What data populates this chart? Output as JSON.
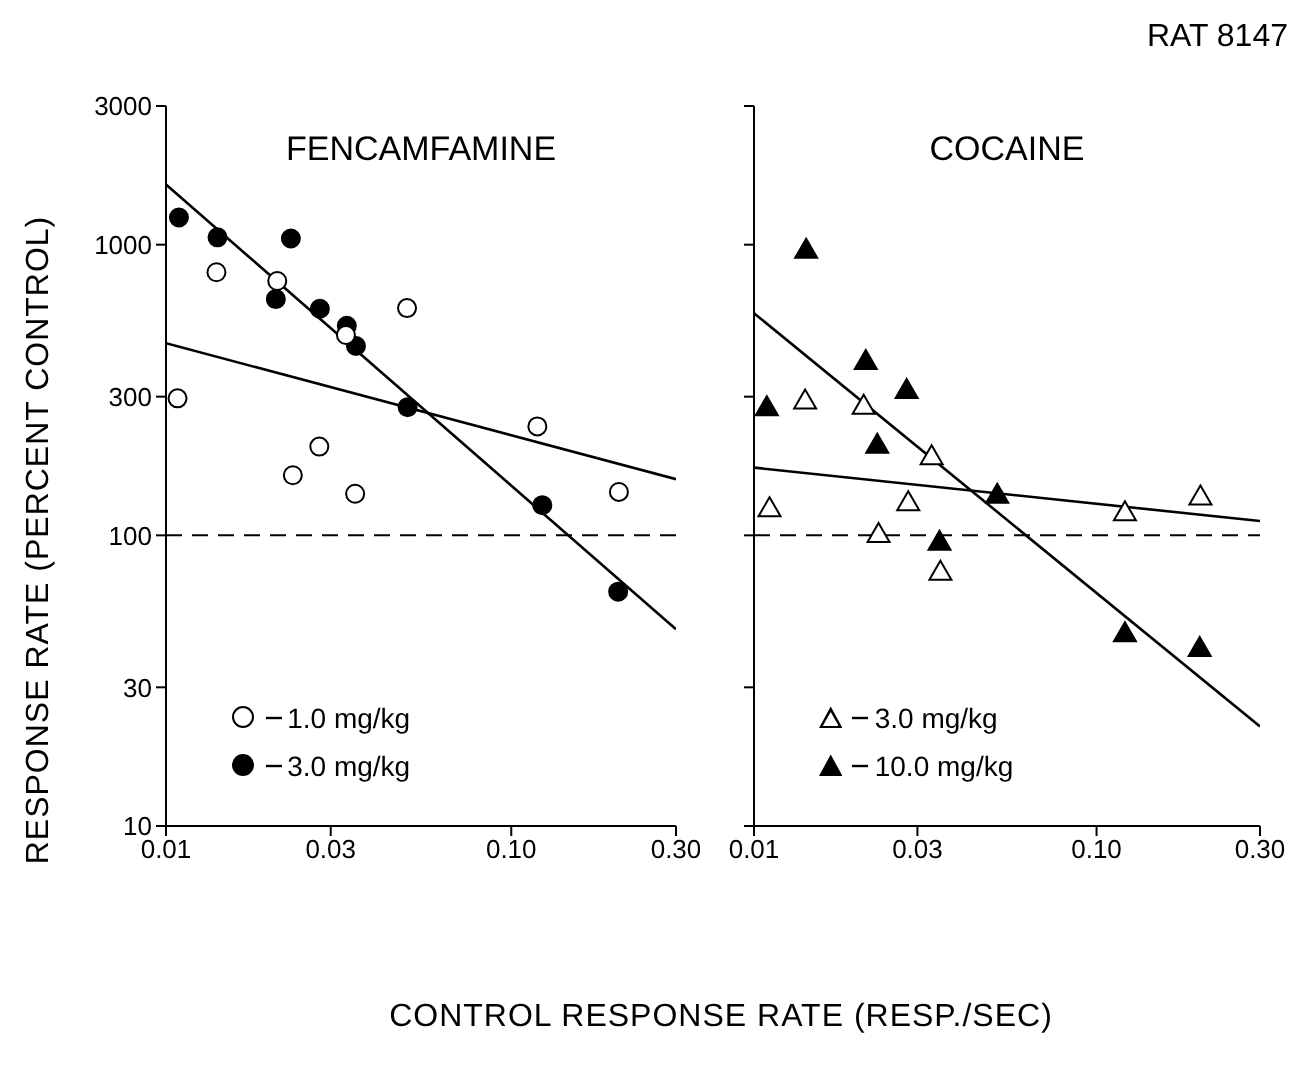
{
  "chart_data": [
    {
      "type": "scatter",
      "title": "FENCAMFAMINE",
      "xlabel": "CONTROL RESPONSE RATE (RESP./SEC)",
      "ylabel": "RESPONSE RATE (PERCENT CONTROL)",
      "log": "xy",
      "xlim": [
        0.01,
        0.3
      ],
      "xticks": [
        {
          "value": 0.01,
          "label": "0.01"
        },
        {
          "value": 0.03,
          "label": "0.03"
        },
        {
          "value": 0.1,
          "label": "0.10"
        },
        {
          "value": 0.3,
          "label": "0.30"
        }
      ],
      "ylim": [
        10,
        3000
      ],
      "yticks": [
        10,
        30,
        100,
        300,
        1000,
        3000
      ],
      "grid": false,
      "legend": "bottom left",
      "ref_lines": [
        {
          "axis": "y",
          "value": 100,
          "line_style": "dashed",
          "color": "#000000"
        }
      ],
      "series": [
        {
          "name": "1.0 mg/kg",
          "color": "#ffffff",
          "marker": "circle",
          "x": [
            0.0108,
            0.014,
            0.021,
            0.0499,
            0.0332,
            0.0278,
            0.0233,
            0.0353,
            0.119,
            0.205
          ],
          "values": [
            296,
            804,
            750,
            605,
            489,
            202,
            161,
            139,
            237,
            141
          ]
        },
        {
          "name": "3.0 mg/kg",
          "color": "#000000",
          "marker": "circle",
          "x": [
            0.0109,
            0.0141,
            0.023,
            0.0208,
            0.0279,
            0.0334,
            0.0355,
            0.0501,
            0.123,
            0.204
          ],
          "values": [
            1240,
            1060,
            1050,
            650,
            602,
            526,
            448,
            276,
            127,
            64
          ]
        },
        {
          "type": "line",
          "color": "#000000",
          "marker": "none",
          "x": [
            0.01,
            0.3
          ],
          "values": [
            458,
            156
          ]
        },
        {
          "type": "line",
          "color": "#000000",
          "marker": "none",
          "x": [
            0.01,
            0.3
          ],
          "values": [
            1610,
            47.5
          ]
        }
      ]
    },
    {
      "type": "scatter",
      "title": "COCAINE",
      "annotations": [
        "RAT 8147"
      ],
      "log": "xy",
      "tick_labels": "x",
      "xlim": [
        0.01,
        0.3
      ],
      "xticks": [
        {
          "value": 0.01,
          "label": "0.01"
        },
        {
          "value": 0.03,
          "label": "0.03"
        },
        {
          "value": 0.1,
          "label": "0.10"
        },
        {
          "value": 0.3,
          "label": "0.30"
        }
      ],
      "ylim": [
        10,
        3000
      ],
      "yticks": [
        10,
        30,
        100,
        300,
        1000,
        3000
      ],
      "grid": false,
      "legend": "bottom left",
      "ref_lines": [
        {
          "axis": "y",
          "value": 100,
          "line_style": "dashed",
          "color": "#000000"
        }
      ],
      "series": [
        {
          "name": "3.0 mg/kg",
          "color": "#ffffff",
          "marker": "triangle",
          "x": [
            0.0111,
            0.0141,
            0.0209,
            0.033,
            0.0282,
            0.0231,
            0.035,
            0.121,
            0.201
          ],
          "values": [
            124,
            291,
            279,
            187,
            130,
            101,
            75,
            120,
            136
          ]
        },
        {
          "name": "10.0 mg/kg",
          "color": "#000000",
          "marker": "triangle",
          "x": [
            0.0109,
            0.0142,
            0.0212,
            0.0279,
            0.0229,
            0.0513,
            0.0348,
            0.121,
            0.2
          ],
          "values": [
            276,
            960,
            398,
            316,
            205,
            138,
            95,
            46,
            41
          ]
        },
        {
          "type": "line",
          "color": "#000000",
          "marker": "none",
          "x": [
            0.01,
            0.3
          ],
          "values": [
            171,
            112
          ]
        },
        {
          "type": "line",
          "color": "#000000",
          "marker": "none",
          "x": [
            0.01,
            0.3
          ],
          "values": [
            581,
            22
          ]
        }
      ]
    }
  ]
}
